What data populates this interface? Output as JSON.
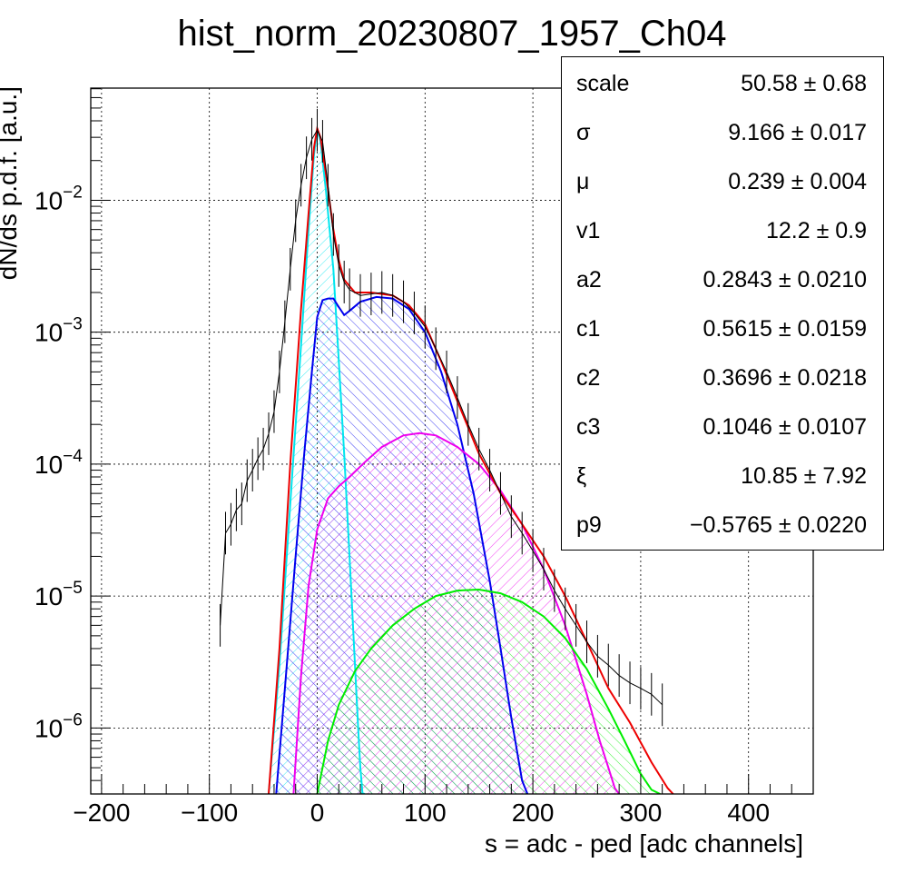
{
  "chart_data": {
    "type": "line",
    "title": "hist_norm_20230807_1957_Ch04",
    "xlabel": "s = adc - ped [adc channels]",
    "ylabel": "dN/ds p.d.f. [a.u.]",
    "xlim": [
      -210,
      460
    ],
    "ylim_log10": [
      -6.5,
      -1.15
    ],
    "log_y": true,
    "grid": true,
    "x_ticks": [
      {
        "value": -200,
        "label": "−200"
      },
      {
        "value": -100,
        "label": "−100"
      },
      {
        "value": 0,
        "label": "0"
      },
      {
        "value": 100,
        "label": "100"
      },
      {
        "value": 200,
        "label": "200"
      },
      {
        "value": 300,
        "label": "300"
      },
      {
        "value": 400,
        "label": "400"
      }
    ],
    "y_ticks": [
      {
        "exp": -2,
        "base": "10",
        "sup": "−2"
      },
      {
        "exp": -3,
        "base": "10",
        "sup": "−3"
      },
      {
        "exp": -4,
        "base": "10",
        "sup": "−4"
      },
      {
        "exp": -5,
        "base": "10",
        "sup": "−5"
      },
      {
        "exp": -6,
        "base": "10",
        "sup": "−6"
      }
    ],
    "series": [
      {
        "color": "#00e5ee",
        "x": [
          -45,
          -35,
          -25,
          -15,
          -8,
          -3,
          0,
          3,
          8,
          15,
          20,
          25,
          30,
          35,
          38,
          40,
          42,
          44
        ],
        "y": [
          3e-07,
          3e-06,
          5e-05,
          0.0008,
          0.006,
          0.022,
          0.034,
          0.028,
          0.012,
          0.003,
          0.0006,
          0.00012,
          2e-05,
          3e-06,
          1e-06,
          5e-07,
          3.2e-07,
          3e-07
        ]
      },
      {
        "color": "#0000ee",
        "x": [
          -38,
          -30,
          -20,
          -12,
          -5,
          0,
          5,
          10,
          15,
          20,
          25,
          30,
          40,
          55,
          70,
          85,
          100,
          115,
          130,
          145,
          160,
          170,
          180,
          190,
          195
        ],
        "y": [
          3e-07,
          2e-06,
          2e-05,
          0.00012,
          0.0005,
          0.0013,
          0.00175,
          0.0018,
          0.0018,
          0.00155,
          0.00135,
          0.00145,
          0.0017,
          0.00185,
          0.0018,
          0.0015,
          0.001,
          0.0005,
          0.0002,
          6e-05,
          1.3e-05,
          4e-06,
          1.2e-06,
          4e-07,
          3e-07
        ]
      },
      {
        "color": "#ee00ee",
        "x": [
          -22,
          -15,
          -8,
          0,
          10,
          20,
          30,
          45,
          60,
          80,
          95,
          110,
          130,
          150,
          170,
          190,
          210,
          230,
          250,
          262,
          270,
          276,
          280
        ],
        "y": [
          3e-07,
          2.5e-06,
          1.2e-05,
          3.2e-05,
          5.5e-05,
          6.8e-05,
          8e-05,
          0.000105,
          0.000135,
          0.000165,
          0.000172,
          0.000165,
          0.000135,
          0.0001,
          6.3e-05,
          3.5e-05,
          1.6e-05,
          6e-06,
          1.8e-06,
          8e-07,
          5e-07,
          3.5e-07,
          3e-07
        ]
      },
      {
        "color": "#00ee00",
        "x": [
          0,
          10,
          20,
          35,
          50,
          70,
          90,
          110,
          130,
          150,
          170,
          190,
          210,
          230,
          250,
          270,
          285,
          300,
          310,
          318
        ],
        "y": [
          3e-07,
          8e-07,
          1.5e-06,
          2.7e-06,
          4e-06,
          6e-06,
          8e-06,
          1e-05,
          1.1e-05,
          1.12e-05,
          1.05e-05,
          9e-06,
          7e-06,
          4.8e-06,
          2.8e-06,
          1.4e-06,
          8e-07,
          4.5e-07,
          3.4e-07,
          3e-07
        ]
      },
      {
        "color": "#ee0000",
        "x": [
          -45,
          -35,
          -25,
          -15,
          -8,
          -3,
          0,
          3,
          8,
          15,
          20,
          25,
          35,
          50,
          70,
          85,
          100,
          115,
          130,
          150,
          170,
          190,
          210,
          230,
          250,
          270,
          290,
          310,
          325,
          330
        ],
        "y": [
          3e-07,
          4e-06,
          0.0001,
          0.0015,
          0.008,
          0.025,
          0.035,
          0.03,
          0.016,
          0.006,
          0.0035,
          0.0025,
          0.002,
          0.002,
          0.0019,
          0.0016,
          0.00115,
          0.0006,
          0.0003,
          0.00012,
          6e-05,
          3.5e-05,
          2e-05,
          1e-05,
          4.5e-06,
          2e-06,
          1.1e-06,
          5.5e-07,
          3.5e-07,
          3e-07
        ]
      },
      {
        "color": "#000000",
        "x": [
          -90,
          -85,
          -80,
          -75,
          -70,
          -65,
          -60,
          -55,
          -50,
          -45,
          -40,
          -35,
          -30,
          -25,
          -20,
          -15,
          -10,
          -5,
          0,
          5,
          10,
          15,
          20,
          25,
          30,
          40,
          50,
          60,
          70,
          80,
          90,
          100,
          110,
          120,
          130,
          140,
          150,
          160,
          170,
          180,
          190,
          200,
          210,
          220,
          230,
          240,
          250,
          260,
          270,
          280,
          290,
          300,
          310,
          320
        ],
        "y": [
          6e-06,
          3e-05,
          3.5e-05,
          4.5e-05,
          5e-05,
          7.5e-05,
          9e-05,
          0.00011,
          0.00013,
          0.00017,
          0.00025,
          0.0005,
          0.0012,
          0.003,
          0.007,
          0.013,
          0.021,
          0.029,
          0.034,
          0.028,
          0.013,
          0.0055,
          0.0032,
          0.0024,
          0.0021,
          0.0019,
          0.00195,
          0.002,
          0.0019,
          0.0017,
          0.0014,
          0.0011,
          0.00075,
          0.0005,
          0.00032,
          0.0002,
          0.00013,
          9e-05,
          6e-05,
          4e-05,
          3e-05,
          2.2e-05,
          1.6e-05,
          1.1e-05,
          8e-06,
          6e-06,
          4.5e-06,
          3.5e-06,
          3e-06,
          2.5e-06,
          2.2e-06,
          2e-06,
          1.8e-06,
          1.5e-06
        ]
      }
    ]
  },
  "stats": [
    {
      "name": "scale",
      "value": "50.58 ± 0.68"
    },
    {
      "name": "σ",
      "value": "9.166 ± 0.017"
    },
    {
      "name": "μ",
      "value": "0.239 ± 0.004"
    },
    {
      "name": "v1",
      "value": "12.2 ± 0.9"
    },
    {
      "name": "a2",
      "value": "0.2843 ± 0.0210"
    },
    {
      "name": "c1",
      "value": "0.5615 ± 0.0159"
    },
    {
      "name": "c2",
      "value": "0.3696 ± 0.0218"
    },
    {
      "name": "c3",
      "value": "0.1046 ± 0.0107"
    },
    {
      "name": "ξ",
      "value": "10.85 ± 7.92"
    },
    {
      "name": "p9",
      "value": "−0.5765 ± 0.0220"
    }
  ]
}
